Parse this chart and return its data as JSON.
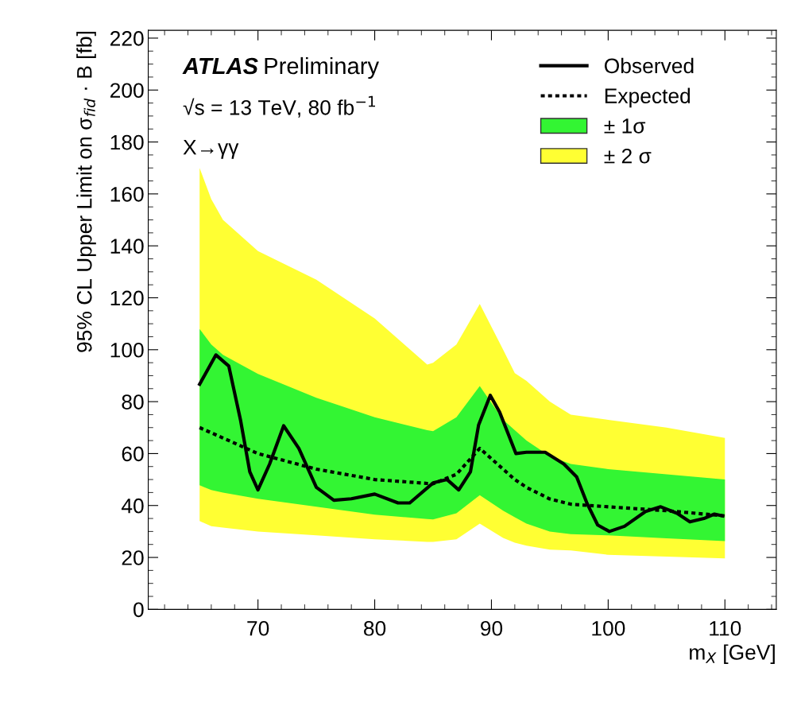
{
  "chart_data": {
    "type": "line",
    "xlabel": "m$_{X}$ [GeV]",
    "ylabel": "95% CL Upper Limit on σ$_{fid}$ · B [fb]",
    "annotations": [
      "ATLAS",
      "Preliminary",
      "√s = 13 TeV, 80 fb$^{−1}$",
      "X→γγ"
    ],
    "xlim": [
      60.6,
      114.4
    ],
    "xticks": [
      70,
      80,
      90,
      100,
      110
    ],
    "ylim": [
      0,
      223
    ],
    "yticks": [
      0,
      20,
      40,
      60,
      80,
      100,
      120,
      140,
      160,
      180,
      200,
      220
    ],
    "legend": "top right",
    "x": [
      65,
      66,
      67,
      70,
      75,
      80,
      84.5,
      85,
      87,
      89,
      91,
      92,
      93,
      95,
      96.8,
      100,
      105,
      110
    ],
    "series": [
      {
        "name": "± 2 σ",
        "color": "#ffff33",
        "values": [
          null,
          null,
          null,
          null,
          null,
          null,
          null,
          null,
          null,
          null,
          null,
          null,
          null,
          null,
          null,
          null,
          null,
          null
        ],
        "lower": [
          34,
          32,
          31.5,
          30,
          28.5,
          27,
          26,
          26,
          27,
          33,
          27.5,
          25.7,
          24.5,
          23,
          22.7,
          21,
          20.3,
          19.6
        ],
        "upper": [
          170,
          158,
          150,
          138,
          127,
          112,
          94.3,
          95,
          102,
          117.6,
          100,
          91,
          88,
          80,
          75,
          73,
          70,
          66
        ]
      },
      {
        "name": "± 1σ",
        "color": "#33f533",
        "values": [
          null,
          null,
          null,
          null,
          null,
          null,
          null,
          null,
          null,
          null,
          null,
          null,
          null,
          null,
          null,
          null,
          null,
          null
        ],
        "lower": [
          47.8,
          46,
          45,
          42.6,
          39.5,
          36.5,
          34.8,
          34.6,
          37,
          44,
          38,
          35.5,
          33,
          30,
          29,
          28.5,
          27.4,
          26.3
        ],
        "upper": [
          108,
          102,
          98,
          90.7,
          81.5,
          74,
          69,
          68.6,
          74,
          86,
          73,
          69,
          65,
          59,
          56,
          54,
          52,
          50
        ]
      },
      {
        "name": "Observed",
        "line_style": "solid",
        "color": "#000000",
        "x": [
          65,
          66.4,
          67.5,
          68.5,
          69.3,
          70,
          71,
          72.2,
          73.5,
          75,
          76.5,
          78,
          80,
          82,
          83,
          85,
          86.2,
          87.2,
          88.2,
          88.9,
          89.9,
          90.7,
          92.1,
          93,
          94.6,
          96.2,
          97.3,
          98.2,
          99.1,
          100.1,
          101.4,
          103.2,
          104.5,
          105.9,
          107,
          108.2,
          109.1,
          109.8
        ],
        "values": [
          86.7,
          98,
          93.7,
          73,
          53,
          46,
          56,
          70.7,
          62,
          47,
          42,
          42.6,
          44.4,
          41,
          41,
          48.7,
          50,
          46,
          53,
          71,
          82.4,
          76,
          60,
          60.5,
          60.5,
          56,
          51,
          40.7,
          32.5,
          30,
          32,
          37.7,
          39.5,
          37,
          33.7,
          35,
          36.7,
          36
        ]
      },
      {
        "name": "Expected",
        "line_style": "dotted",
        "color": "#000000",
        "values": [
          70,
          68,
          66,
          60,
          54,
          50,
          48.5,
          48.4,
          52,
          62,
          54,
          50,
          47,
          42.5,
          40.5,
          39.5,
          38,
          36
        ]
      }
    ]
  }
}
